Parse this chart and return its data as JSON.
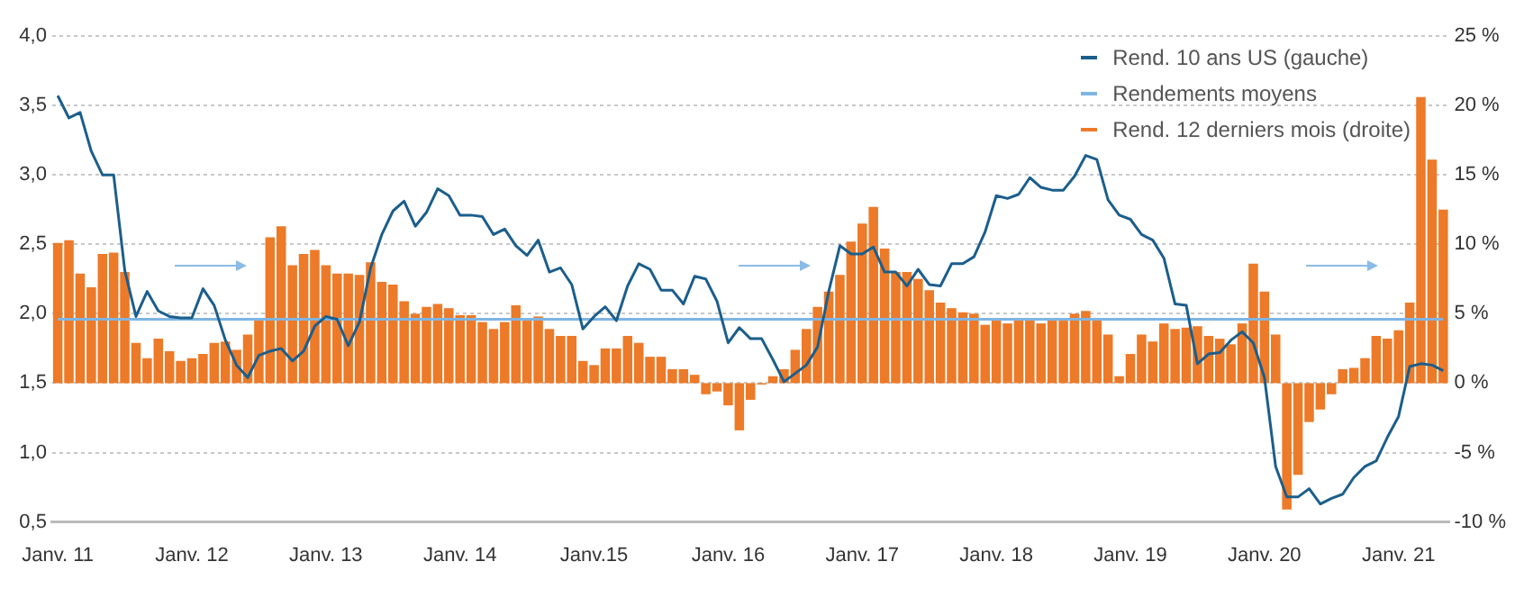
{
  "chart_data": {
    "type": "bar",
    "categories": [
      "Janv. 11",
      null,
      null,
      null,
      null,
      null,
      null,
      null,
      null,
      null,
      null,
      null,
      "Janv. 12",
      null,
      null,
      null,
      null,
      null,
      null,
      null,
      null,
      null,
      null,
      null,
      "Janv. 13",
      null,
      null,
      null,
      null,
      null,
      null,
      null,
      null,
      null,
      null,
      null,
      "Janv. 14",
      null,
      null,
      null,
      null,
      null,
      null,
      null,
      null,
      null,
      null,
      null,
      "Janv.15",
      null,
      null,
      null,
      null,
      null,
      null,
      null,
      null,
      null,
      null,
      null,
      "Janv. 16",
      null,
      null,
      null,
      null,
      null,
      null,
      null,
      null,
      null,
      null,
      null,
      "Janv. 17",
      null,
      null,
      null,
      null,
      null,
      null,
      null,
      null,
      null,
      null,
      null,
      "Janv. 18",
      null,
      null,
      null,
      null,
      null,
      null,
      null,
      null,
      null,
      null,
      null,
      "Janv. 19",
      null,
      null,
      null,
      null,
      null,
      null,
      null,
      null,
      null,
      null,
      null,
      "Janv. 20",
      null,
      null,
      null,
      null,
      null,
      null,
      null,
      null,
      null,
      null,
      null,
      "Janv. 21",
      null,
      null,
      null,
      null
    ],
    "series": [
      {
        "name": "Rend. 12 derniers mois (droite)",
        "axis": "y2",
        "color": "#ec7a28",
        "values": [
          10.1,
          10.3,
          7.9,
          6.9,
          9.3,
          9.4,
          8.0,
          2.9,
          1.8,
          3.2,
          2.3,
          1.6,
          1.8,
          2.1,
          2.9,
          3.0,
          2.4,
          3.5,
          4.5,
          10.5,
          11.3,
          8.5,
          9.3,
          9.6,
          8.5,
          7.9,
          7.9,
          7.8,
          8.7,
          7.3,
          7.1,
          5.9,
          5.0,
          5.5,
          5.7,
          5.4,
          4.9,
          4.9,
          4.4,
          3.9,
          4.4,
          5.6,
          4.5,
          4.8,
          3.9,
          3.4,
          3.4,
          1.6,
          1.3,
          2.5,
          2.5,
          3.4,
          2.9,
          1.9,
          1.9,
          1.0,
          1.0,
          0.6,
          -0.8,
          -0.6,
          -1.6,
          -3.4,
          -1.2,
          -0.1,
          0.5,
          1.0,
          2.4,
          3.9,
          5.5,
          6.6,
          7.8,
          10.2,
          11.5,
          12.7,
          9.7,
          8.0,
          8.0,
          7.5,
          6.7,
          5.8,
          5.4,
          5.1,
          5.0,
          4.2,
          4.5,
          4.3,
          4.5,
          4.5,
          4.3,
          4.5,
          4.5,
          5.0,
          5.2,
          4.5,
          3.5,
          0.5,
          2.1,
          3.5,
          3.0,
          4.3,
          3.9,
          4.0,
          4.1,
          3.4,
          3.2,
          2.8,
          4.3,
          8.6,
          6.6,
          3.5,
          -9.1,
          -6.6,
          -2.8,
          -1.9,
          -0.8,
          1.0,
          1.1,
          1.8,
          3.4,
          3.2,
          3.8,
          5.8,
          20.6,
          16.1,
          12.5
        ]
      },
      {
        "name": "Rend. 10 ans US (gauche)",
        "type": "line",
        "color": "#1b5e8c",
        "values": [
          3.57,
          3.41,
          3.45,
          3.17,
          3.0,
          3.0,
          2.31,
          1.98,
          2.16,
          2.02,
          1.98,
          1.97,
          1.97,
          2.18,
          2.06,
          1.81,
          1.63,
          1.54,
          1.7,
          1.73,
          1.75,
          1.66,
          1.73,
          1.91,
          1.98,
          1.96,
          1.77,
          1.94,
          2.33,
          2.57,
          2.74,
          2.81,
          2.63,
          2.73,
          2.9,
          2.85,
          2.71,
          2.71,
          2.7,
          2.57,
          2.61,
          2.49,
          2.42,
          2.53,
          2.3,
          2.33,
          2.21,
          1.89,
          1.98,
          2.05,
          1.95,
          2.2,
          2.36,
          2.32,
          2.17,
          2.17,
          2.07,
          2.27,
          2.25,
          2.09,
          1.79,
          1.9,
          1.82,
          1.82,
          1.67,
          1.51,
          1.57,
          1.63,
          1.76,
          2.16,
          2.49,
          2.43,
          2.43,
          2.48,
          2.3,
          2.3,
          2.2,
          2.32,
          2.21,
          2.2,
          2.36,
          2.36,
          2.41,
          2.59,
          2.85,
          2.83,
          2.86,
          2.98,
          2.91,
          2.89,
          2.89,
          2.99,
          3.14,
          3.11,
          2.82,
          2.71,
          2.68,
          2.57,
          2.53,
          2.4,
          2.07,
          2.06,
          1.64,
          1.71,
          1.72,
          1.81,
          1.87,
          1.79,
          1.54,
          0.9,
          0.68,
          0.68,
          0.74,
          0.63,
          0.67,
          0.7,
          0.82,
          0.9,
          0.94,
          1.11,
          1.26,
          1.62,
          1.64,
          1.63,
          1.59
        ]
      },
      {
        "name": "Rendements moyens",
        "type": "line",
        "color": "#7fb5e3",
        "values": [
          1.96,
          1.96,
          1.96,
          1.96,
          1.96,
          1.96,
          1.96,
          1.96,
          1.96,
          1.96,
          1.96,
          1.96,
          1.96,
          1.96,
          1.96,
          1.96,
          1.96,
          1.96,
          1.96,
          1.96,
          1.96,
          1.96,
          1.96,
          1.96,
          1.96,
          1.96,
          1.96,
          1.96,
          1.96,
          1.96,
          1.96,
          1.96,
          1.96,
          1.96,
          1.96,
          1.96,
          1.96,
          1.96,
          1.96,
          1.96,
          1.96,
          1.96,
          1.96,
          1.96,
          1.96,
          1.96,
          1.96,
          1.96,
          1.96,
          1.96,
          1.96,
          1.96,
          1.96,
          1.96,
          1.96,
          1.96,
          1.96,
          1.96,
          1.96,
          1.96,
          1.96,
          1.96,
          1.96,
          1.96,
          1.96,
          1.96,
          1.96,
          1.96,
          1.96,
          1.96,
          1.96,
          1.96,
          1.96,
          1.96,
          1.96,
          1.96,
          1.96,
          1.96,
          1.96,
          1.96,
          1.96,
          1.96,
          1.96,
          1.96,
          1.96,
          1.96,
          1.96,
          1.96,
          1.96,
          1.96,
          1.96,
          1.96,
          1.96,
          1.96,
          1.96,
          1.96,
          1.96,
          1.96,
          1.96,
          1.96,
          1.96,
          1.96,
          1.96,
          1.96,
          1.96,
          1.96,
          1.96,
          1.96,
          1.96,
          1.96,
          1.96,
          1.96,
          1.96,
          1.96,
          1.96,
          1.96,
          1.96,
          1.96,
          1.96,
          1.96,
          1.96,
          1.96,
          1.96,
          1.96,
          1.96
        ]
      }
    ],
    "ylim": [
      0.5,
      4
    ],
    "yticks": [
      {
        "value": 0.5,
        "label": "0,5"
      },
      {
        "value": 1,
        "label": "1,0"
      },
      {
        "value": 1.5,
        "label": "1,5"
      },
      {
        "value": 2,
        "label": "2,0"
      },
      {
        "value": 2.5,
        "label": "2,5"
      },
      {
        "value": 3,
        "label": "3,0"
      },
      {
        "value": 3.5,
        "label": "3,5"
      },
      {
        "value": 4,
        "label": "4,0"
      }
    ],
    "y2lim": [
      -10,
      25
    ],
    "y2ticks": [
      {
        "value": -10,
        "label": "-10 %"
      },
      {
        "value": -5,
        "label": "-5 %"
      },
      {
        "value": 0,
        "label": "0 %"
      },
      {
        "value": 5,
        "label": "5 %"
      },
      {
        "value": 10,
        "label": "10 %"
      },
      {
        "value": 15,
        "label": "15 %"
      },
      {
        "value": 20,
        "label": "20 %"
      },
      {
        "value": 25,
        "label": "25 %"
      }
    ],
    "grid": "y",
    "legend": "top right"
  }
}
